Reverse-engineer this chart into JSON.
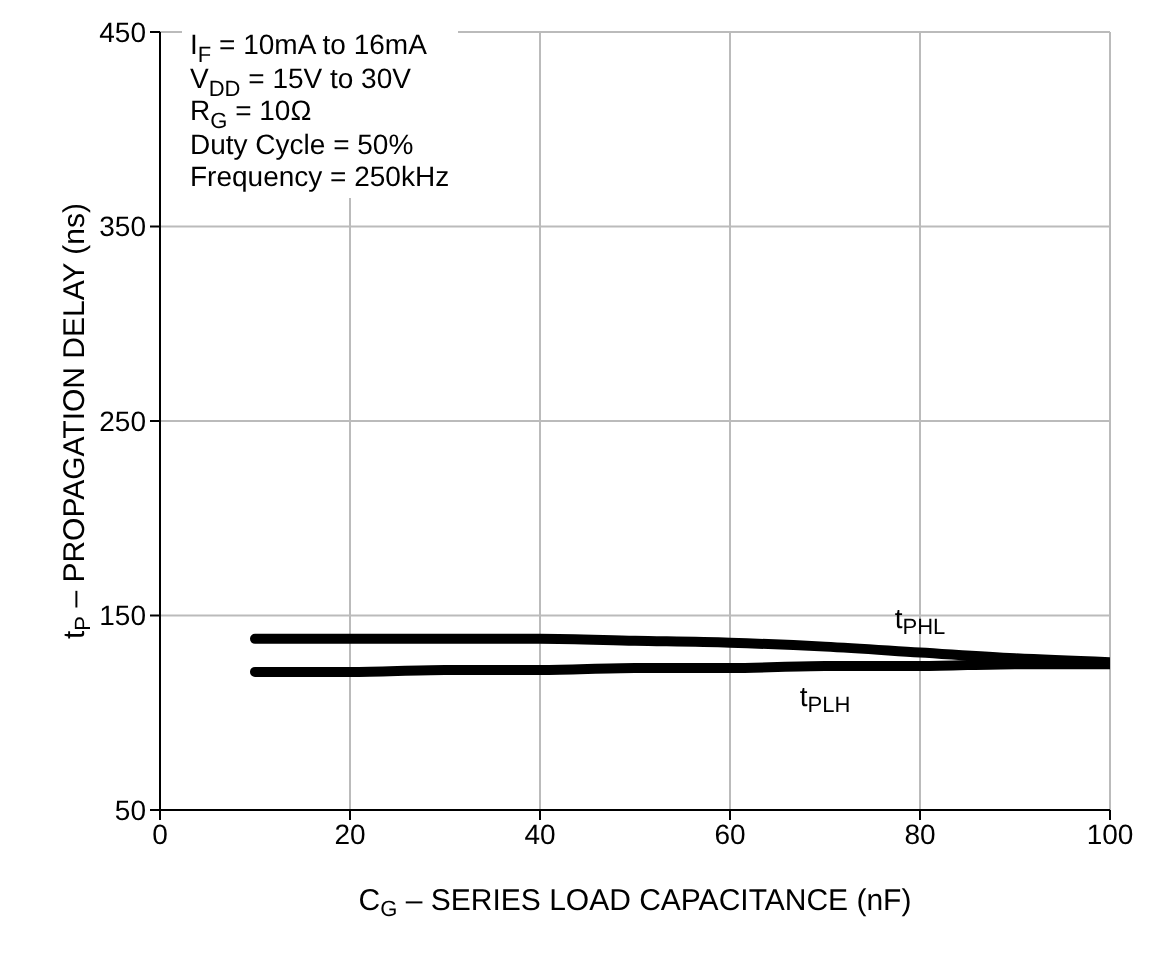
{
  "chart_data": {
    "type": "line",
    "xlabel": "C$_{G}$ – SERIES LOAD CAPACITANCE (nF)",
    "ylabel": "t$_{P}$ – PROPAGATION DELAY (ns)",
    "x": [
      10,
      20,
      30,
      40,
      50,
      60,
      70,
      80,
      90,
      100
    ],
    "series": [
      {
        "name": "t$_{PHL}$",
        "color": "#000000",
        "values": [
          138,
          138,
          138,
          138,
          137,
          136,
          134,
          131,
          128,
          126
        ]
      },
      {
        "name": "t$_{PLH}$",
        "color": "#000000",
        "values": [
          121,
          121,
          122,
          122,
          123,
          123,
          124,
          124,
          125,
          125
        ]
      }
    ],
    "xlim": [
      0,
      100
    ],
    "xticks": [
      0,
      20,
      40,
      60,
      80,
      100
    ],
    "ylim": [
      50,
      450
    ],
    "yticks": [
      50,
      150,
      250,
      350,
      450
    ],
    "grid": true,
    "legend": false,
    "marker": "none",
    "line_style": "solid",
    "annotations": [
      "I$_{F}$ = 10mA to 16mA",
      "V$_{DD}$ = 15V to 30V",
      "R$_{G}$ = 10Ω",
      "Duty Cycle = 50%",
      "Frequency = 250kHz"
    ]
  }
}
